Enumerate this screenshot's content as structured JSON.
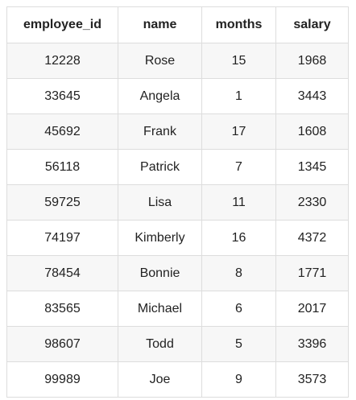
{
  "table": {
    "headers": [
      "employee_id",
      "name",
      "months",
      "salary"
    ],
    "rows": [
      [
        "12228",
        "Rose",
        "15",
        "1968"
      ],
      [
        "33645",
        "Angela",
        "1",
        "3443"
      ],
      [
        "45692",
        "Frank",
        "17",
        "1608"
      ],
      [
        "56118",
        "Patrick",
        "7",
        "1345"
      ],
      [
        "59725",
        "Lisa",
        "11",
        "2330"
      ],
      [
        "74197",
        "Kimberly",
        "16",
        "4372"
      ],
      [
        "78454",
        "Bonnie",
        "8",
        "1771"
      ],
      [
        "83565",
        "Michael",
        "6",
        "2017"
      ],
      [
        "98607",
        "Todd",
        "5",
        "3396"
      ],
      [
        "99989",
        "Joe",
        "9",
        "3573"
      ]
    ]
  }
}
